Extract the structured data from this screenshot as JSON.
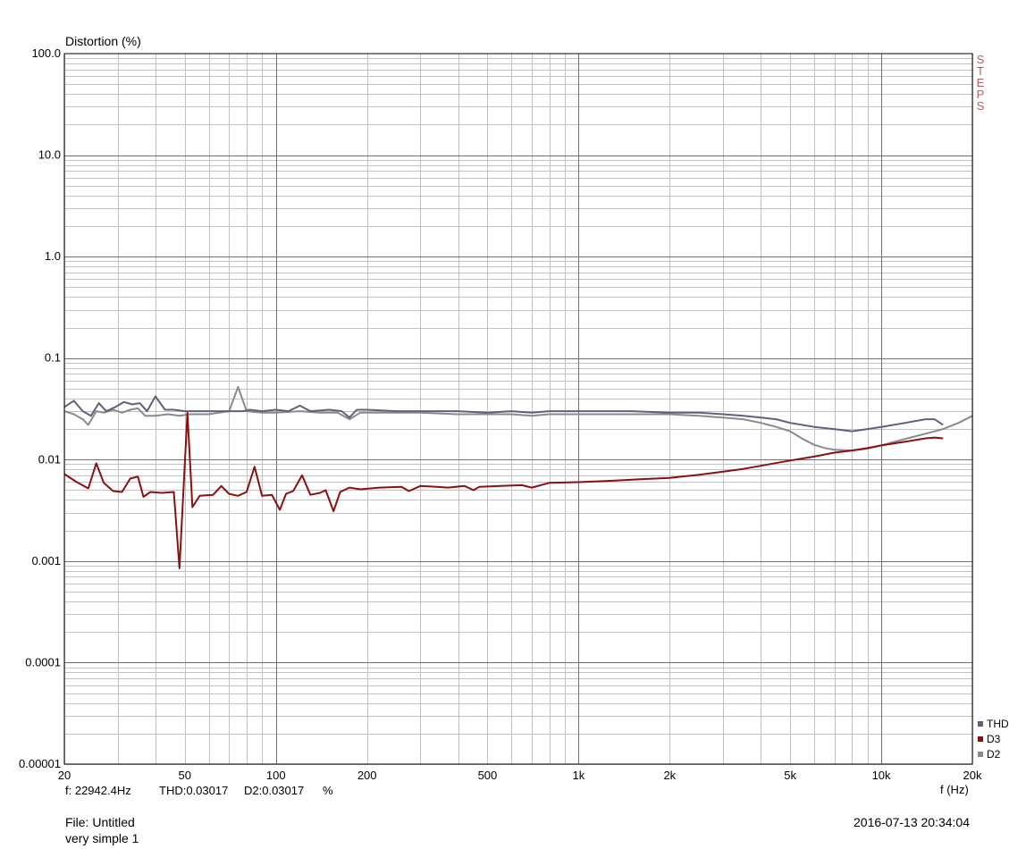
{
  "chart_data": {
    "type": "line",
    "ylabel": "Distortion (%)",
    "xlabel": "f (Hz)",
    "x_scale": "log",
    "y_scale": "log",
    "xlim": [
      20,
      20000
    ],
    "ylim": [
      1e-05,
      100
    ],
    "grid": true,
    "x_ticks": [
      {
        "value": 20,
        "label": "20"
      },
      {
        "value": 50,
        "label": "50"
      },
      {
        "value": 100,
        "label": "100"
      },
      {
        "value": 200,
        "label": "200"
      },
      {
        "value": 500,
        "label": "500"
      },
      {
        "value": 1000,
        "label": "1k"
      },
      {
        "value": 2000,
        "label": "2k"
      },
      {
        "value": 5000,
        "label": "5k"
      },
      {
        "value": 10000,
        "label": "10k"
      },
      {
        "value": 20000,
        "label": "20k"
      }
    ],
    "y_ticks": [
      {
        "value": 100,
        "label": "100.0"
      },
      {
        "value": 10,
        "label": "10.0"
      },
      {
        "value": 1,
        "label": "1.0"
      },
      {
        "value": 0.1,
        "label": "0.1"
      },
      {
        "value": 0.01,
        "label": "0.01"
      },
      {
        "value": 0.001,
        "label": "0.001"
      },
      {
        "value": 0.0001,
        "label": "0.0001"
      },
      {
        "value": 1e-05,
        "label": "0.00001"
      }
    ],
    "legend_position": "bottom-right",
    "series": [
      {
        "name": "THD",
        "color": "#60607e",
        "points": [
          [
            20,
            0.033
          ],
          [
            21.5,
            0.038
          ],
          [
            23,
            0.03
          ],
          [
            24.5,
            0.027
          ],
          [
            26,
            0.036
          ],
          [
            27.5,
            0.03
          ],
          [
            29.5,
            0.033
          ],
          [
            31.5,
            0.037
          ],
          [
            33.5,
            0.035
          ],
          [
            35.5,
            0.036
          ],
          [
            37.5,
            0.03
          ],
          [
            40,
            0.042
          ],
          [
            43,
            0.031
          ],
          [
            46,
            0.031
          ],
          [
            50,
            0.03
          ],
          [
            53,
            0.03
          ],
          [
            60,
            0.03
          ],
          [
            70,
            0.03
          ],
          [
            78,
            0.03
          ],
          [
            82,
            0.031
          ],
          [
            90,
            0.03
          ],
          [
            100,
            0.031
          ],
          [
            110,
            0.03
          ],
          [
            120,
            0.034
          ],
          [
            130,
            0.03
          ],
          [
            150,
            0.031
          ],
          [
            165,
            0.03
          ],
          [
            175,
            0.026
          ],
          [
            185,
            0.031
          ],
          [
            200,
            0.031
          ],
          [
            250,
            0.03
          ],
          [
            300,
            0.03
          ],
          [
            400,
            0.03
          ],
          [
            500,
            0.029
          ],
          [
            600,
            0.03
          ],
          [
            700,
            0.029
          ],
          [
            800,
            0.03
          ],
          [
            1000,
            0.03
          ],
          [
            1500,
            0.03
          ],
          [
            2000,
            0.029
          ],
          [
            2500,
            0.029
          ],
          [
            3000,
            0.028
          ],
          [
            3500,
            0.027
          ],
          [
            4000,
            0.026
          ],
          [
            4500,
            0.025
          ],
          [
            5000,
            0.023
          ],
          [
            6000,
            0.021
          ],
          [
            7000,
            0.02
          ],
          [
            8000,
            0.019
          ],
          [
            9000,
            0.02
          ],
          [
            10000,
            0.021
          ],
          [
            12000,
            0.023
          ],
          [
            14000,
            0.025
          ],
          [
            15000,
            0.025
          ],
          [
            16000,
            0.022
          ]
        ]
      },
      {
        "name": "D3",
        "color": "#8b1010",
        "points": [
          [
            20,
            0.0072
          ],
          [
            22,
            0.006
          ],
          [
            24,
            0.0052
          ],
          [
            25.5,
            0.0092
          ],
          [
            27,
            0.0059
          ],
          [
            29,
            0.0049
          ],
          [
            31,
            0.0048
          ],
          [
            33,
            0.0065
          ],
          [
            35,
            0.0068
          ],
          [
            36.5,
            0.0043
          ],
          [
            38.5,
            0.0048
          ],
          [
            42,
            0.0047
          ],
          [
            46,
            0.0048
          ],
          [
            48,
            0.00085
          ],
          [
            51,
            0.029
          ],
          [
            53,
            0.0034
          ],
          [
            56,
            0.0044
          ],
          [
            62,
            0.0045
          ],
          [
            66,
            0.0055
          ],
          [
            70,
            0.0046
          ],
          [
            75,
            0.0044
          ],
          [
            80,
            0.0048
          ],
          [
            85,
            0.0085
          ],
          [
            90,
            0.0044
          ],
          [
            97,
            0.0045
          ],
          [
            103,
            0.0032
          ],
          [
            108,
            0.0046
          ],
          [
            114,
            0.0049
          ],
          [
            122,
            0.007
          ],
          [
            130,
            0.0045
          ],
          [
            140,
            0.0047
          ],
          [
            146,
            0.005
          ],
          [
            155,
            0.0031
          ],
          [
            163,
            0.0048
          ],
          [
            175,
            0.0053
          ],
          [
            190,
            0.0051
          ],
          [
            220,
            0.0053
          ],
          [
            260,
            0.0054
          ],
          [
            275,
            0.0049
          ],
          [
            300,
            0.0055
          ],
          [
            340,
            0.0054
          ],
          [
            370,
            0.0053
          ],
          [
            420,
            0.0055
          ],
          [
            450,
            0.005
          ],
          [
            470,
            0.0054
          ],
          [
            550,
            0.0055
          ],
          [
            650,
            0.0056
          ],
          [
            700,
            0.0053
          ],
          [
            800,
            0.0059
          ],
          [
            1000,
            0.006
          ],
          [
            1300,
            0.0062
          ],
          [
            1600,
            0.0064
          ],
          [
            2000,
            0.0066
          ],
          [
            2500,
            0.0071
          ],
          [
            3000,
            0.0076
          ],
          [
            3500,
            0.0081
          ],
          [
            4000,
            0.0087
          ],
          [
            5000,
            0.0098
          ],
          [
            6000,
            0.0107
          ],
          [
            7000,
            0.0117
          ],
          [
            8000,
            0.0123
          ],
          [
            9000,
            0.013
          ],
          [
            10000,
            0.0138
          ],
          [
            12000,
            0.015
          ],
          [
            14000,
            0.0162
          ],
          [
            15000,
            0.0165
          ],
          [
            16000,
            0.0162
          ]
        ]
      },
      {
        "name": "D2",
        "color": "#8a8a8a",
        "points": [
          [
            20,
            0.03
          ],
          [
            21.5,
            0.028
          ],
          [
            23,
            0.025
          ],
          [
            24,
            0.022
          ],
          [
            25.5,
            0.03
          ],
          [
            27,
            0.029
          ],
          [
            29,
            0.031
          ],
          [
            31,
            0.029
          ],
          [
            33,
            0.031
          ],
          [
            35,
            0.032
          ],
          [
            37,
            0.027
          ],
          [
            40,
            0.027
          ],
          [
            44,
            0.028
          ],
          [
            48,
            0.027
          ],
          [
            52,
            0.028
          ],
          [
            60,
            0.028
          ],
          [
            70,
            0.03
          ],
          [
            75,
            0.052
          ],
          [
            80,
            0.03
          ],
          [
            90,
            0.029
          ],
          [
            100,
            0.029
          ],
          [
            120,
            0.03
          ],
          [
            140,
            0.029
          ],
          [
            160,
            0.029
          ],
          [
            175,
            0.025
          ],
          [
            190,
            0.029
          ],
          [
            220,
            0.029
          ],
          [
            260,
            0.029
          ],
          [
            300,
            0.029
          ],
          [
            400,
            0.028
          ],
          [
            500,
            0.028
          ],
          [
            600,
            0.028
          ],
          [
            700,
            0.027
          ],
          [
            800,
            0.028
          ],
          [
            1000,
            0.028
          ],
          [
            1500,
            0.028
          ],
          [
            2000,
            0.028
          ],
          [
            2500,
            0.027
          ],
          [
            3000,
            0.026
          ],
          [
            3500,
            0.025
          ],
          [
            4000,
            0.023
          ],
          [
            4500,
            0.021
          ],
          [
            5000,
            0.019
          ],
          [
            5500,
            0.016
          ],
          [
            6000,
            0.014
          ],
          [
            6500,
            0.013
          ],
          [
            7000,
            0.0125
          ],
          [
            8000,
            0.0123
          ],
          [
            9000,
            0.0128
          ],
          [
            10000,
            0.0138
          ],
          [
            12000,
            0.016
          ],
          [
            14000,
            0.018
          ],
          [
            16000,
            0.02
          ],
          [
            18000,
            0.023
          ],
          [
            20000,
            0.027
          ]
        ]
      }
    ],
    "footer": {
      "readout_freq": "f: 22942.4Hz",
      "readout_thd": "THD:0.03017",
      "readout_d2": "D2:0.03017",
      "readout_unit": "%",
      "file": "File: Untitled",
      "description": "very simple 1",
      "timestamp": "2016-07-13 20:34:04"
    },
    "brand": [
      "S",
      "T",
      "E",
      "P",
      "S"
    ]
  }
}
